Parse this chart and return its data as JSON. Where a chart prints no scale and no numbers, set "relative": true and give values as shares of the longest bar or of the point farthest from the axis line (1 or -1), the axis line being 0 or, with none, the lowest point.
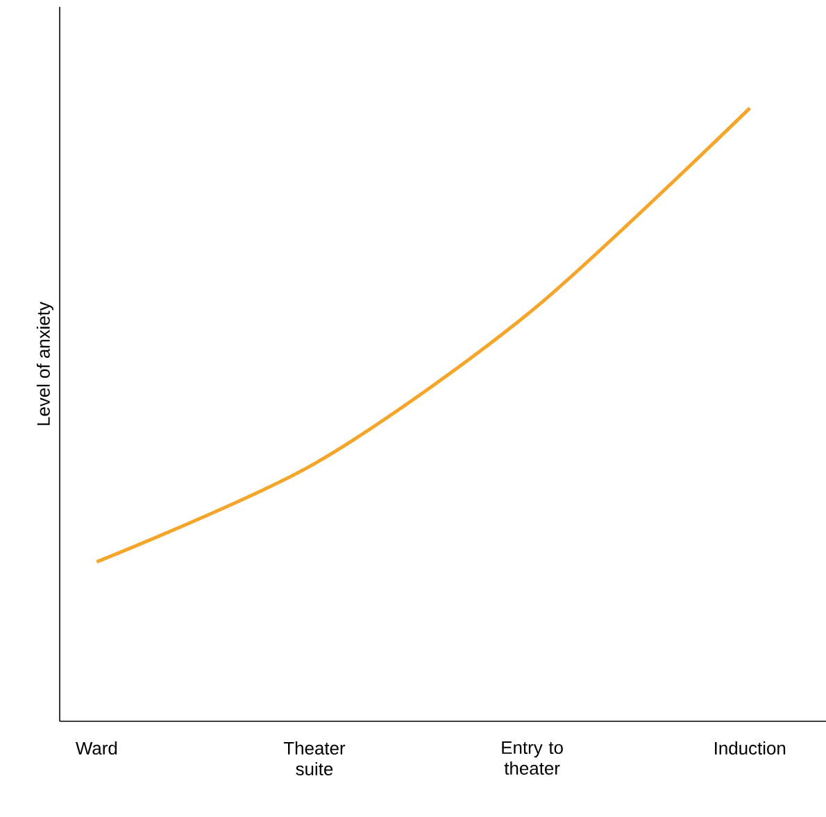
{
  "chart_data": {
    "type": "line",
    "ylabel": "Level of anxiety",
    "categories": [
      "Ward",
      "Theater suite",
      "Entry to theater",
      "Induction"
    ],
    "series": [
      {
        "color": "#f5a52a",
        "values": [
          0.26,
          0.42,
          0.67,
          1
        ]
      }
    ],
    "relative": true
  }
}
